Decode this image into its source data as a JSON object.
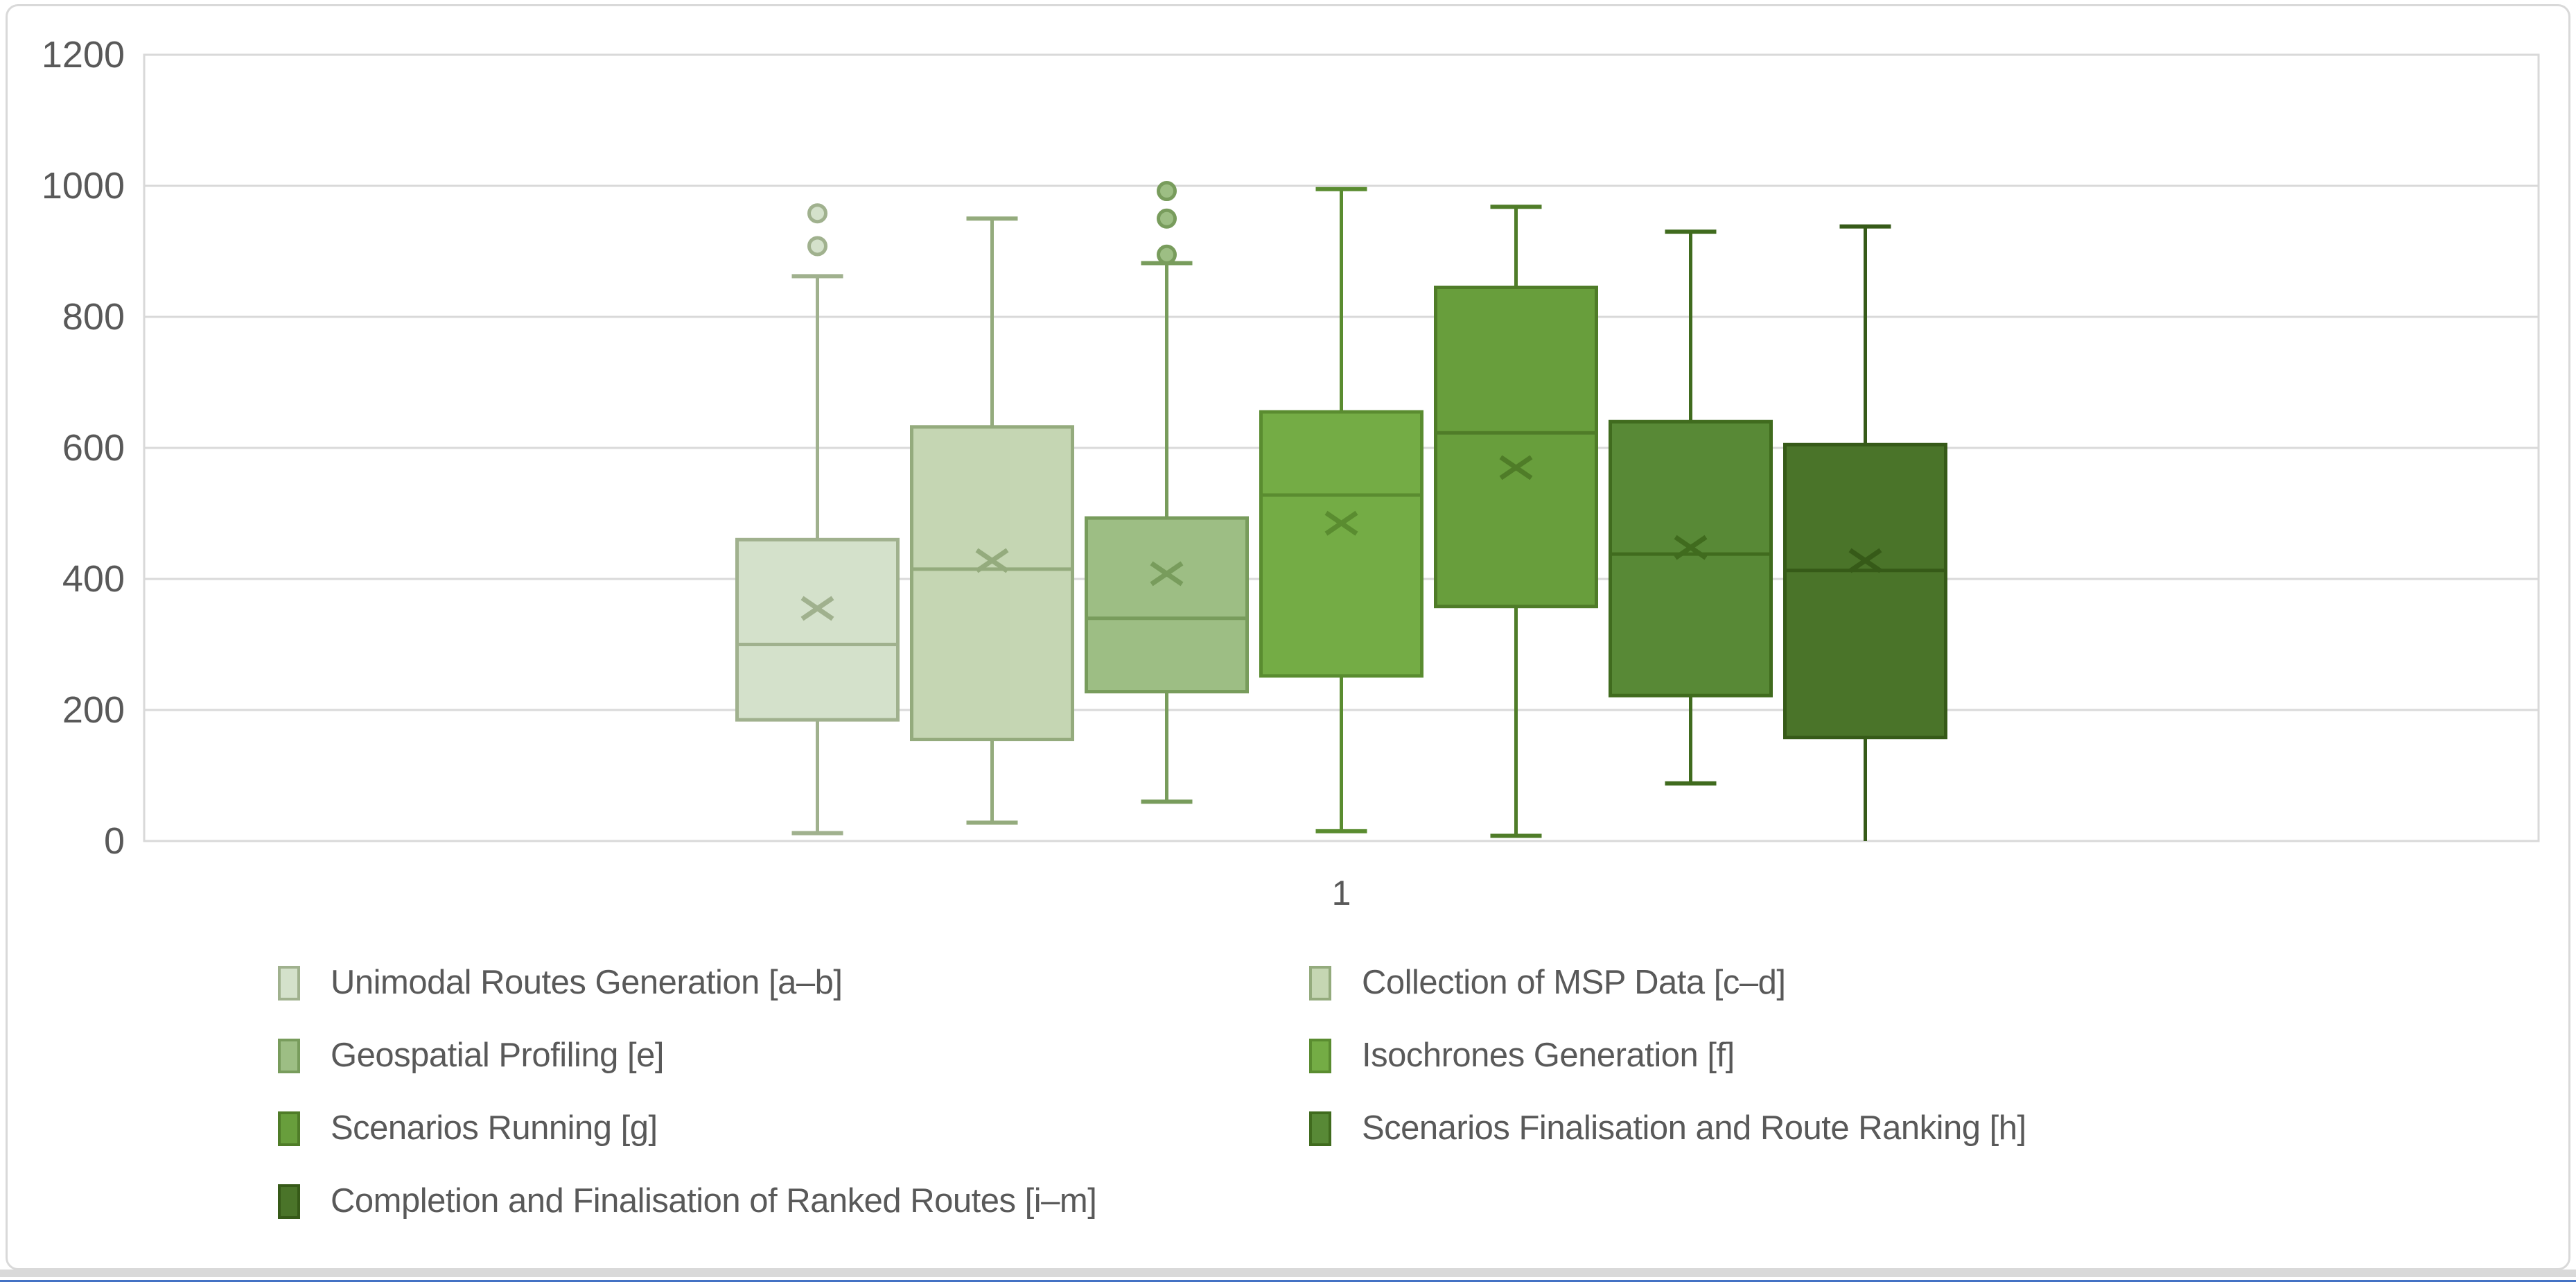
{
  "chart_data": {
    "type": "box",
    "title": "",
    "categories": [
      "1"
    ],
    "x_tick_label": "1",
    "ylabel": "",
    "xlabel": "",
    "ylim": [
      0,
      1200
    ],
    "y_step": 200,
    "y_tick_labels": [
      "0",
      "200",
      "400",
      "600",
      "800",
      "1000",
      "1200"
    ],
    "grid": "horizontal",
    "legend_position": "bottom",
    "legend_columns": 2,
    "series": [
      {
        "name": "Unimodal Routes Generation [a–b]",
        "fill": "#d4e1cb",
        "stroke": "#a0b18e",
        "min": 12,
        "q1": 185,
        "median": 300,
        "mean": 355,
        "q3": 460,
        "max": 862,
        "outliers": [
          958,
          908
        ]
      },
      {
        "name": "Collection of MSP Data [c–d]",
        "fill": "#c5d6b3",
        "stroke": "#94ab7d",
        "min": 28,
        "q1": 155,
        "median": 415,
        "mean": 428,
        "q3": 632,
        "max": 950,
        "outliers": []
      },
      {
        "name": "Geospatial Profiling [e]",
        "fill": "#9dbe84",
        "stroke": "#789c5c",
        "min": 60,
        "q1": 228,
        "median": 340,
        "mean": 408,
        "q3": 493,
        "max": 882,
        "outliers": [
          992,
          950,
          895
        ]
      },
      {
        "name": "Isochrones Generation [f]",
        "fill": "#74ac45",
        "stroke": "#5a8c30",
        "min": 15,
        "q1": 252,
        "median": 528,
        "mean": 485,
        "q3": 655,
        "max": 995,
        "outliers": []
      },
      {
        "name": "Scenarios Running [g]",
        "fill": "#689e3c",
        "stroke": "#4f7c28",
        "min": 8,
        "q1": 358,
        "median": 623,
        "mean": 570,
        "q3": 845,
        "max": 968,
        "outliers": []
      },
      {
        "name": "Scenarios Finalisation and Route Ranking [h]",
        "fill": "#588936",
        "stroke": "#406b1e",
        "min": 88,
        "q1": 222,
        "median": 438,
        "mean": 448,
        "q3": 640,
        "max": 930,
        "outliers": []
      },
      {
        "name": "Completion and Finalisation of Ranked Routes [i–m]",
        "fill": "#4a7429",
        "stroke": "#365a18",
        "min": 0,
        "q1": 158,
        "median": 413,
        "mean": 428,
        "q3": 605,
        "max": 938,
        "outliers": []
      }
    ]
  },
  "colors": {
    "background": "#ffffff",
    "gridline": "#d9d9d9",
    "plot_border": "#d9d9d9",
    "frame_border": "#d9d9d9",
    "axis_text": "#595959",
    "bottom_strip": "#d9d9d9",
    "bottom_edge_line": "#4472c4"
  }
}
